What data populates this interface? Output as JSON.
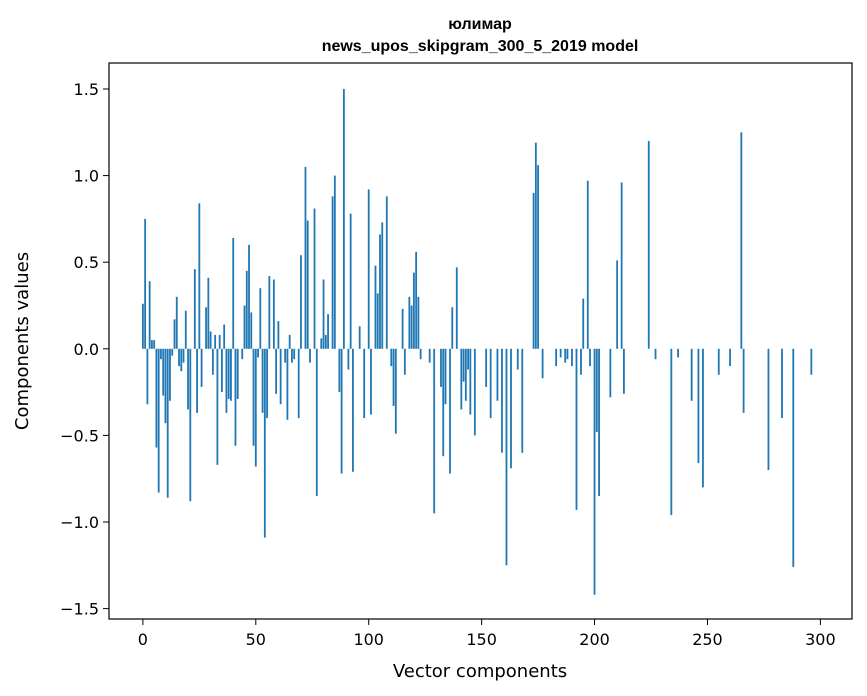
{
  "chart_data": {
    "type": "bar",
    "title": "юлимар",
    "subtitle": "news_upos_skipgram_300_5_2019 model",
    "xlabel": "Vector components",
    "ylabel": "Components values",
    "xlim": [
      -15,
      314
    ],
    "ylim": [
      -1.56,
      1.65
    ],
    "xticks": [
      0,
      50,
      100,
      150,
      200,
      250,
      300
    ],
    "yticks": [
      -1.5,
      -1.0,
      -0.5,
      0.0,
      0.5,
      1.0,
      1.5
    ],
    "ytick_labels": [
      "−1.5",
      "−1.0",
      "−0.5",
      "0.0",
      "0.5",
      "1.0",
      "1.5"
    ],
    "grid": false,
    "bar_color": "#1f77b4",
    "values": [
      0.26,
      0.75,
      -0.32,
      0.39,
      0.05,
      0.05,
      -0.57,
      -0.83,
      -0.06,
      -0.27,
      -0.43,
      -0.86,
      -0.3,
      -0.04,
      0.17,
      0.3,
      -0.1,
      -0.13,
      -0.08,
      0.22,
      -0.35,
      -0.88,
      0.0,
      0.46,
      -0.37,
      0.84,
      -0.22,
      0.0,
      0.24,
      0.41,
      0.1,
      -0.15,
      0.08,
      -0.67,
      0.08,
      -0.25,
      0.14,
      -0.37,
      -0.29,
      -0.3,
      0.64,
      -0.56,
      -0.29,
      0.0,
      -0.06,
      0.25,
      0.45,
      0.6,
      0.21,
      -0.56,
      -0.68,
      -0.05,
      0.35,
      -0.37,
      -1.09,
      -0.4,
      0.42,
      0.0,
      0.4,
      -0.26,
      0.16,
      -0.32,
      0.0,
      -0.08,
      -0.41,
      0.08,
      -0.08,
      -0.06,
      0.0,
      -0.4,
      0.54,
      0.0,
      1.05,
      0.74,
      -0.08,
      0.0,
      0.81,
      -0.85,
      0.0,
      0.06,
      0.4,
      0.08,
      0.2,
      0.0,
      0.88,
      1.0,
      0.0,
      -0.25,
      -0.72,
      1.5,
      0.0,
      -0.12,
      0.78,
      -0.71,
      0.0,
      0.0,
      0.13,
      0.0,
      -0.4,
      0.0,
      0.92,
      -0.38,
      0.0,
      0.48,
      0.32,
      0.66,
      0.73,
      0.0,
      0.88,
      0.0,
      -0.1,
      -0.33,
      -0.49,
      0.0,
      0.0,
      0.23,
      -0.15,
      0.0,
      0.3,
      0.25,
      0.44,
      0.56,
      0.3,
      -0.06,
      0.0,
      0.0,
      0.0,
      -0.08,
      0.0,
      -0.95,
      0.0,
      0.0,
      -0.22,
      -0.62,
      -0.32,
      0.0,
      -0.72,
      0.24,
      0.0,
      0.47,
      0.0,
      -0.35,
      -0.19,
      -0.3,
      -0.12,
      -0.38,
      0.0,
      -0.5,
      0.0,
      0.0,
      0.0,
      0.0,
      -0.22,
      0.0,
      -0.4,
      0.0,
      0.0,
      -0.3,
      0.0,
      -0.6,
      0.0,
      -1.25,
      0.0,
      -0.69,
      0.0,
      0.0,
      -0.12,
      0.0,
      -0.6,
      0.0,
      0.0,
      0.0,
      0.0,
      0.9,
      1.19,
      1.06,
      0.0,
      -0.17,
      0.0,
      0.0,
      0.0,
      0.0,
      0.0,
      -0.1,
      0.0,
      -0.05,
      0.0,
      -0.08,
      -0.06,
      0.0,
      -0.1,
      0.0,
      -0.93,
      0.0,
      -0.15,
      0.29,
      0.0,
      0.97,
      -0.1,
      0.0,
      -1.42,
      -0.48,
      -0.85,
      0.0,
      0.0,
      0.0,
      0.0,
      -0.28,
      0.0,
      0.0,
      0.51,
      0.0,
      0.96,
      -0.26,
      0.0,
      0.0,
      0.0,
      0.0,
      0.0,
      0.0,
      0.0,
      0.0,
      0.0,
      0.0,
      1.2,
      0.0,
      0.0,
      -0.06,
      0.0,
      0.0,
      0.0,
      0.0,
      0.0,
      0.0,
      -0.96,
      0.0,
      0.0,
      -0.05,
      0.0,
      0.0,
      0.0,
      0.0,
      0.0,
      -0.3,
      0.0,
      0.0,
      -0.66,
      0.0,
      -0.8,
      0.0,
      0.0,
      0.0,
      0.0,
      0.0,
      0.0,
      -0.15,
      0.0,
      0.0,
      0.0,
      0.0,
      -0.1,
      0.0,
      0.0,
      0.0,
      0.0,
      1.25,
      -0.37,
      0.0,
      0.0,
      0.0,
      0.0,
      0.0,
      0.0,
      0.0,
      0.0,
      0.0,
      0.0,
      -0.7,
      0.0,
      0.0,
      0.0,
      0.0,
      0.0,
      -0.4,
      0.0,
      0.0,
      0.0,
      0.0,
      -1.26,
      0.0,
      0.0,
      0.0,
      0.0,
      0.0,
      0.0,
      0.0,
      -0.15,
      0.0,
      0.0,
      0.0
    ]
  }
}
